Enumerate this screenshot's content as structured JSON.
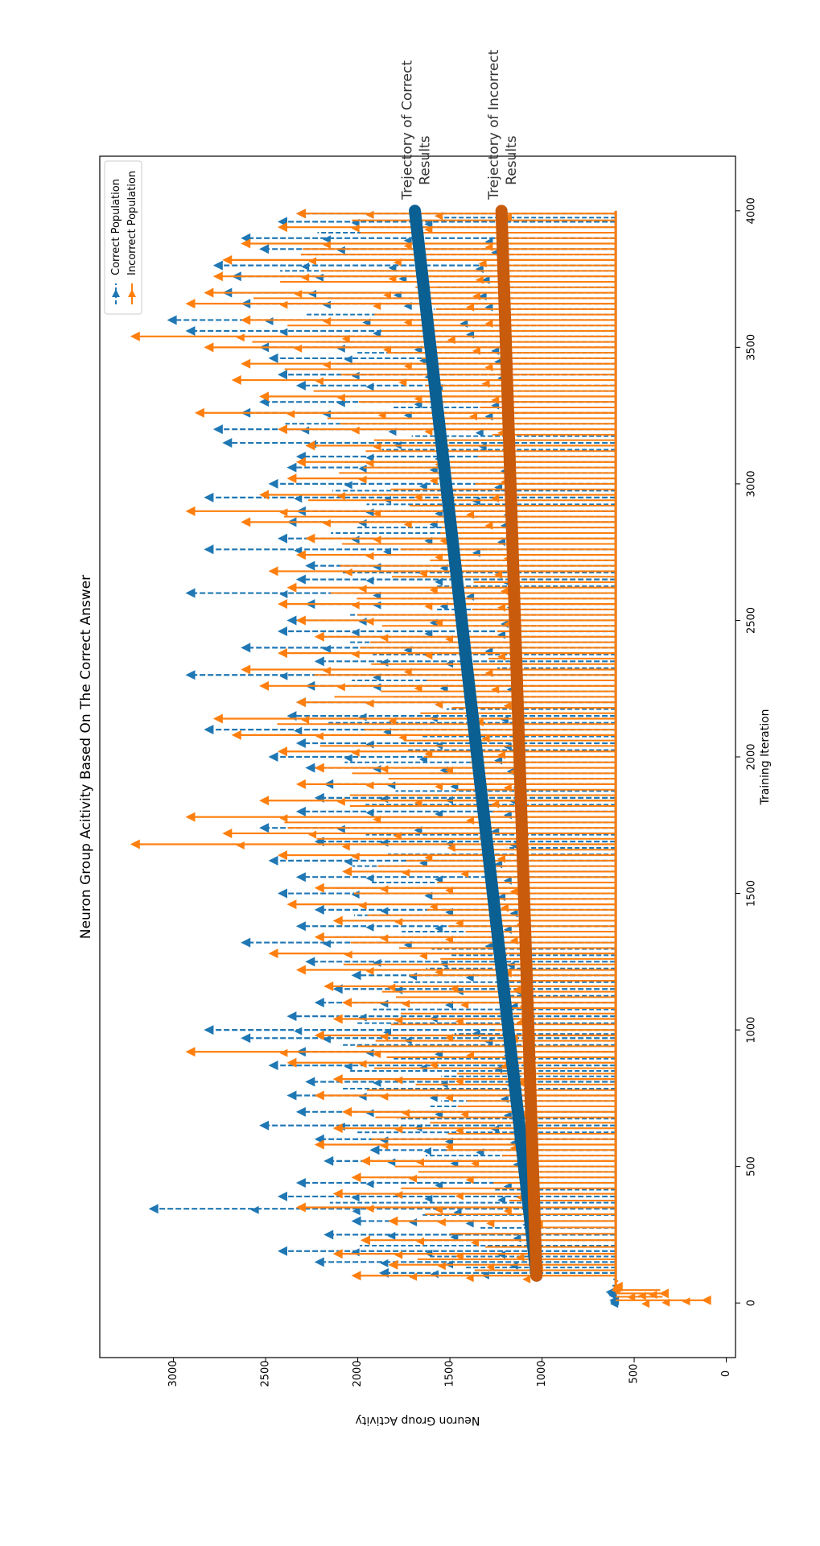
{
  "chart_data": {
    "type": "line",
    "orientation": "rotated-90-clockwise",
    "title": "Neuron Group Acitivity Based On The Correct Answer",
    "xlabel": "Training Iteration",
    "ylabel": "Neuron Group Activity",
    "xlim": [
      -200,
      4200
    ],
    "ylim": [
      3400,
      -50
    ],
    "x_ticks": [
      0,
      500,
      1000,
      1500,
      2000,
      2500,
      3000,
      3500,
      4000
    ],
    "y_ticks": [
      3000,
      2500,
      2000,
      1500,
      1000,
      500,
      0
    ],
    "legend": {
      "position": "top-right"
    },
    "series": [
      {
        "name": "Correct Population",
        "color": "#1f77b4",
        "linestyle": "dashed",
        "marker": "triangle",
        "baseline": 600,
        "burst_points": [
          [
            10,
            600
          ],
          [
            40,
            620
          ],
          [
            110,
            1850
          ],
          [
            150,
            2200
          ],
          [
            190,
            2400
          ],
          [
            250,
            2150
          ],
          [
            300,
            2000
          ],
          [
            345,
            3100
          ],
          [
            390,
            2400
          ],
          [
            440,
            2300
          ],
          [
            520,
            2150
          ],
          [
            560,
            1900
          ],
          [
            600,
            2200
          ],
          [
            650,
            2500
          ],
          [
            700,
            2300
          ],
          [
            760,
            2350
          ],
          [
            810,
            2250
          ],
          [
            870,
            2450
          ],
          [
            920,
            2300
          ],
          [
            970,
            2600
          ],
          [
            1000,
            2800
          ],
          [
            1050,
            2350
          ],
          [
            1100,
            2200
          ],
          [
            1150,
            2100
          ],
          [
            1200,
            2000
          ],
          [
            1250,
            2250
          ],
          [
            1320,
            2600
          ],
          [
            1380,
            2300
          ],
          [
            1440,
            2200
          ],
          [
            1500,
            2400
          ],
          [
            1560,
            2300
          ],
          [
            1620,
            2450
          ],
          [
            1690,
            2200
          ],
          [
            1740,
            2500
          ],
          [
            1800,
            2300
          ],
          [
            1850,
            2200
          ],
          [
            1900,
            2150
          ],
          [
            1960,
            2250
          ],
          [
            2000,
            2450
          ],
          [
            2050,
            2300
          ],
          [
            2100,
            2800
          ],
          [
            2150,
            2350
          ],
          [
            2200,
            2300
          ],
          [
            2260,
            2250
          ],
          [
            2300,
            2900
          ],
          [
            2350,
            2200
          ],
          [
            2400,
            2600
          ],
          [
            2460,
            2400
          ],
          [
            2500,
            2350
          ],
          [
            2560,
            2250
          ],
          [
            2600,
            2900
          ],
          [
            2650,
            2300
          ],
          [
            2700,
            2250
          ],
          [
            2760,
            2800
          ],
          [
            2800,
            2400
          ],
          [
            2860,
            2350
          ],
          [
            2900,
            2300
          ],
          [
            2950,
            2800
          ],
          [
            3000,
            2450
          ],
          [
            3060,
            2350
          ],
          [
            3100,
            2300
          ],
          [
            3150,
            2700
          ],
          [
            3200,
            2750
          ],
          [
            3260,
            2600
          ],
          [
            3300,
            2500
          ],
          [
            3360,
            2300
          ],
          [
            3400,
            2400
          ],
          [
            3460,
            2450
          ],
          [
            3500,
            2500
          ],
          [
            3560,
            2900
          ],
          [
            3600,
            3000
          ],
          [
            3660,
            2600
          ],
          [
            3700,
            2700
          ],
          [
            3760,
            2650
          ],
          [
            3800,
            2750
          ],
          [
            3860,
            2500
          ],
          [
            3900,
            2600
          ],
          [
            3960,
            2400
          ],
          [
            3990,
            2300
          ]
        ]
      },
      {
        "name": "Incorrect Population",
        "color": "#ff7f0e",
        "linestyle": "solid",
        "marker": "triangle",
        "baseline": 600,
        "burst_points": [
          [
            10,
            100
          ],
          [
            35,
            330
          ],
          [
            60,
            580
          ],
          [
            100,
            2000
          ],
          [
            140,
            1800
          ],
          [
            180,
            2100
          ],
          [
            230,
            1950
          ],
          [
            300,
            1800
          ],
          [
            350,
            2300
          ],
          [
            400,
            2100
          ],
          [
            460,
            2000
          ],
          [
            520,
            1950
          ],
          [
            580,
            2200
          ],
          [
            640,
            2100
          ],
          [
            700,
            2050
          ],
          [
            760,
            2200
          ],
          [
            820,
            2100
          ],
          [
            880,
            2350
          ],
          [
            920,
            2900
          ],
          [
            980,
            2200
          ],
          [
            1040,
            2100
          ],
          [
            1100,
            2050
          ],
          [
            1160,
            2150
          ],
          [
            1220,
            2300
          ],
          [
            1280,
            2450
          ],
          [
            1340,
            2200
          ],
          [
            1400,
            2100
          ],
          [
            1460,
            2350
          ],
          [
            1520,
            2200
          ],
          [
            1580,
            2050
          ],
          [
            1640,
            2400
          ],
          [
            1680,
            3200
          ],
          [
            1720,
            2700
          ],
          [
            1780,
            2900
          ],
          [
            1840,
            2500
          ],
          [
            1900,
            2300
          ],
          [
            1960,
            2200
          ],
          [
            2020,
            2400
          ],
          [
            2080,
            2650
          ],
          [
            2140,
            2750
          ],
          [
            2200,
            2300
          ],
          [
            2260,
            2500
          ],
          [
            2320,
            2600
          ],
          [
            2380,
            2400
          ],
          [
            2440,
            2200
          ],
          [
            2500,
            2300
          ],
          [
            2560,
            2400
          ],
          [
            2620,
            2350
          ],
          [
            2680,
            2450
          ],
          [
            2740,
            2300
          ],
          [
            2800,
            2250
          ],
          [
            2860,
            2600
          ],
          [
            2900,
            2900
          ],
          [
            2960,
            2500
          ],
          [
            3020,
            2350
          ],
          [
            3080,
            2300
          ],
          [
            3140,
            2250
          ],
          [
            3200,
            2400
          ],
          [
            3260,
            2850
          ],
          [
            3320,
            2500
          ],
          [
            3380,
            2650
          ],
          [
            3440,
            2600
          ],
          [
            3500,
            2800
          ],
          [
            3540,
            3200
          ],
          [
            3600,
            2600
          ],
          [
            3660,
            2900
          ],
          [
            3700,
            2800
          ],
          [
            3760,
            2750
          ],
          [
            3820,
            2700
          ],
          [
            3880,
            2600
          ],
          [
            3940,
            2400
          ],
          [
            3990,
            2300
          ]
        ]
      },
      {
        "name": "Trejectory of Correct Results",
        "color": "#0a5f93",
        "linestyle": "solid",
        "marker": "none",
        "points": [
          [
            100,
            1030
          ],
          [
            4000,
            1690
          ]
        ]
      },
      {
        "name": "Trejectory of Incorrect Results",
        "color": "#c85b0c",
        "linestyle": "solid",
        "marker": "none",
        "points": [
          [
            100,
            1030
          ],
          [
            4000,
            1220
          ]
        ]
      }
    ],
    "annotations": [
      {
        "text": "Trejectory of Correct\nResults",
        "x": 4000,
        "y": 1690
      },
      {
        "text": "Trejectory of Incorrect\nResults",
        "x": 4000,
        "y": 1220
      }
    ]
  }
}
